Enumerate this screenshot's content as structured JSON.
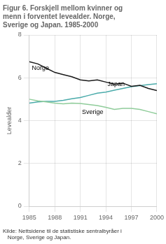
{
  "chart_data": {
    "type": "line",
    "title": "Figur 6. Forskjell mellom kvinner og\nmenn i forventet levealder. Norge,\nSverige og Japan. 1985-2000",
    "source": "Kilde: Nettsidene til de statistiske sentralbyråer i\n   Norge, Sverige og Japan.",
    "ylabel": "Levealder",
    "x": [
      1985,
      1986,
      1987,
      1988,
      1989,
      1990,
      1991,
      1992,
      1993,
      1994,
      1995,
      1996,
      1997,
      1998,
      1999,
      2000
    ],
    "series": [
      {
        "name": "Norge",
        "color": "#1a1a1a",
        "values": [
          6.75,
          6.65,
          6.45,
          6.25,
          6.15,
          6.05,
          5.9,
          5.85,
          5.9,
          5.8,
          5.7,
          5.75,
          5.6,
          5.65,
          5.5,
          5.4
        ]
      },
      {
        "name": "Sverige",
        "color": "#8fcc9a",
        "values": [
          5.0,
          4.92,
          4.87,
          4.82,
          4.78,
          4.82,
          4.8,
          4.75,
          4.7,
          4.62,
          4.52,
          4.57,
          4.57,
          4.52,
          4.42,
          4.32
        ]
      },
      {
        "name": "Japan",
        "color": "#4aabaa",
        "values": [
          4.82,
          4.87,
          4.9,
          4.9,
          4.95,
          5.02,
          5.08,
          5.18,
          5.28,
          5.33,
          5.42,
          5.5,
          5.58,
          5.63,
          5.68,
          5.72
        ]
      }
    ],
    "xlim": [
      1985,
      2000
    ],
    "xticks": [
      1985,
      1988,
      1991,
      1994,
      1997,
      2000
    ],
    "ylim": [
      0,
      8
    ],
    "yticks": [
      0,
      2,
      4,
      6,
      8
    ],
    "grid": true,
    "annotations": [
      {
        "text": "Norge",
        "x": 1985.3,
        "y": 6.6
      },
      {
        "text": "Japan",
        "x": 1994.2,
        "y": 5.55
      },
      {
        "text": "Sverige",
        "x": 1991.2,
        "y": 4.55
      }
    ]
  }
}
